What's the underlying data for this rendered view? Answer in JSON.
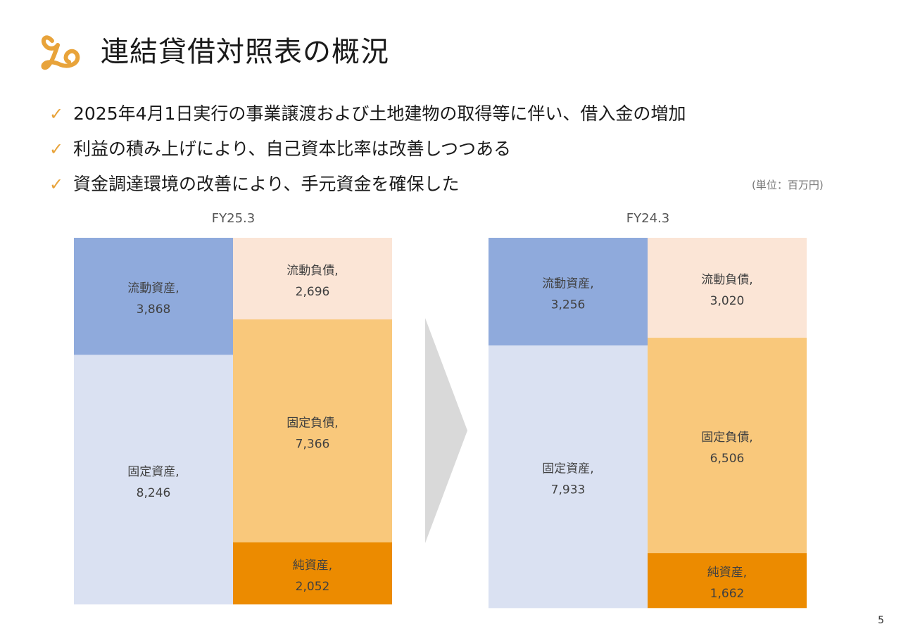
{
  "title": "連結貸借対照表の概況",
  "logo": {
    "icon": "lp-swirl-logo-icon",
    "color": "#e8a33a"
  },
  "bullets": [
    {
      "icon": "checkmark-icon",
      "text": "2025年4月1日実行の事業譲渡および土地建物の取得等に伴い、借入金の増加"
    },
    {
      "icon": "checkmark-icon",
      "text": "利益の積み上げにより、自己資本比率は改善しつつある"
    },
    {
      "icon": "checkmark-icon",
      "text": "資金調達環境の改善により、手元資金を確保した"
    }
  ],
  "unit_note": "(単位：百万円)",
  "arrow_icon": "chevron-right-icon",
  "page_number": "5",
  "colors": {
    "current_assets": "#8faadc",
    "fixed_assets": "#dae1f2",
    "current_liabilities": "#fbe5d6",
    "fixed_liabilities": "#f9c87b",
    "net_assets": "#ec8b00"
  },
  "chart_data": {
    "type": "bar",
    "stacked": true,
    "unit": "百万円",
    "periods": [
      {
        "label": "FY25.3",
        "assets": [
          {
            "name": "流動資産",
            "label": "流動資産,",
            "value": 3868,
            "display": "3,868"
          },
          {
            "name": "固定資産",
            "label": "固定資産,",
            "value": 8246,
            "display": "8,246"
          }
        ],
        "liabilities_and_equity": [
          {
            "name": "流動負債",
            "label": "流動負債,",
            "value": 2696,
            "display": "2,696"
          },
          {
            "name": "固定負債",
            "label": "固定負債,",
            "value": 7366,
            "display": "7,366"
          },
          {
            "name": "純資産",
            "label": "純資産,",
            "value": 2052,
            "display": "2,052"
          }
        ]
      },
      {
        "label": "FY24.3",
        "assets": [
          {
            "name": "流動資産",
            "label": "流動資産,",
            "value": 3256,
            "display": "3,256"
          },
          {
            "name": "固定資産",
            "label": "固定資産,",
            "value": 7933,
            "display": "7,933"
          }
        ],
        "liabilities_and_equity": [
          {
            "name": "流動負債",
            "label": "流動負債,",
            "value": 3020,
            "display": "3,020"
          },
          {
            "name": "固定負債",
            "label": "固定負債,",
            "value": 6506,
            "display": "6,506"
          },
          {
            "name": "純資産",
            "label": "純資産,",
            "value": 1662,
            "display": "1,662"
          }
        ]
      }
    ]
  }
}
